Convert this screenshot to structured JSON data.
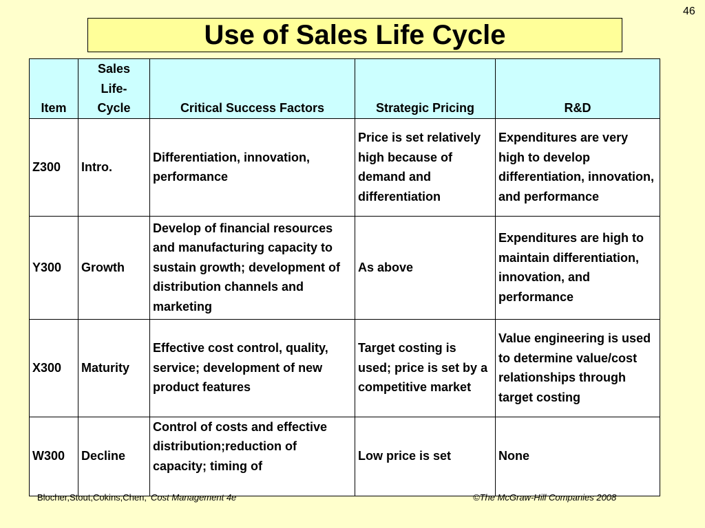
{
  "page_number": "46",
  "title": "Use of Sales Life Cycle",
  "table": {
    "headers": {
      "item": "Item",
      "cycle": "Sales Life-Cycle",
      "csf": "Critical Success Factors",
      "pricing": "Strategic Pricing",
      "rd": "R&D"
    },
    "rows": [
      {
        "item": "Z300",
        "cycle": "Intro.",
        "csf": "Differentiation, innovation, performance",
        "pricing": "Price is set relatively high because of demand and differentiation",
        "rd": "Expenditures are very high to develop differentiation, innovation, and performance"
      },
      {
        "item": "Y300",
        "cycle": "Growth",
        "csf": "Develop of financial resources and manufacturing capacity to sustain growth; development of distribution channels and marketing",
        "pricing": "As above",
        "rd": "Expenditures are high to maintain differentiation, innovation, and performance"
      },
      {
        "item": "X300",
        "cycle": "Maturity",
        "csf": "Effective cost control, quality, service; development of new product features",
        "pricing": "Target costing is used; price is set by a competitive market",
        "rd": "Value engineering is used to determine value/cost relationships through target costing"
      },
      {
        "item": "W300",
        "cycle": "Decline",
        "csf": "Control of costs and effective distribution;reduction of capacity; timing of",
        "pricing": "Low price is set",
        "rd": "None"
      }
    ]
  },
  "footer": {
    "authors": "Blocher,Stout,Cokins,Chen,",
    "book": "Cost Management 4e",
    "copyright": "©The McGraw-Hill Companies 2008"
  }
}
